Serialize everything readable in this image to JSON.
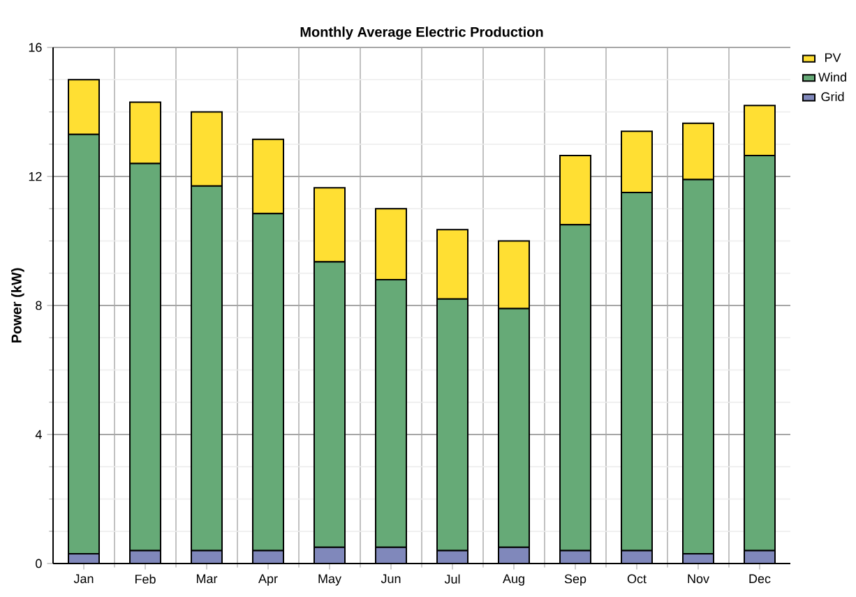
{
  "chart_data": {
    "type": "bar",
    "title": "Monthly Average Electric Production",
    "ylabel": "Power (kW)",
    "categories": [
      "Jan",
      "Feb",
      "Mar",
      "Apr",
      "May",
      "Jun",
      "Jul",
      "Aug",
      "Sep",
      "Oct",
      "Nov",
      "Dec"
    ],
    "stacked": true,
    "series": [
      {
        "name": "Grid",
        "color": "#8088bb",
        "values": [
          0.3,
          0.4,
          0.4,
          0.4,
          0.5,
          0.5,
          0.4,
          0.5,
          0.4,
          0.4,
          0.3,
          0.4
        ]
      },
      {
        "name": "Wind",
        "color": "#66aa77",
        "values": [
          13.0,
          12.0,
          11.3,
          10.45,
          8.85,
          8.3,
          7.8,
          7.4,
          10.1,
          11.1,
          11.6,
          12.25
        ]
      },
      {
        "name": "PV",
        "color": "#ffdf33",
        "values": [
          1.7,
          1.9,
          2.3,
          2.3,
          2.3,
          2.2,
          2.15,
          2.1,
          2.15,
          1.9,
          1.75,
          1.55
        ]
      }
    ],
    "ylim": [
      0,
      16
    ],
    "yticks": [
      0,
      4,
      8,
      12,
      16
    ],
    "grid": true,
    "legend": "right"
  }
}
